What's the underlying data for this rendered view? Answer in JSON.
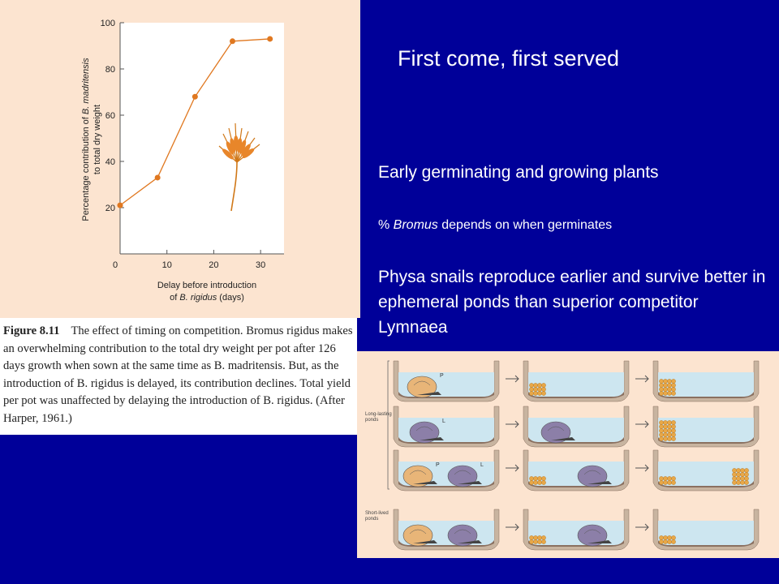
{
  "slide": {
    "title": "First come, first served",
    "bullet1": "Early germinating and growing plants",
    "bullet2_prefix": "% ",
    "bullet2_italic": "Bromus",
    "bullet2_suffix": " depends on when germinates",
    "bullet3": "Physa snails reproduce earlier and survive better in ephemeral ponds than superior competitor Lymnaea"
  },
  "chart_data": {
    "type": "line",
    "ylabel_line1_prefix": "Percentage contribution of ",
    "ylabel_line1_italic": "B. madritensis",
    "ylabel_line2": "to total dry weight",
    "xlabel_line1": "Delay before introduction",
    "xlabel_line2_prefix": "of ",
    "xlabel_line2_italic": "B. rigidus",
    "xlabel_line2_suffix": " (days)",
    "xlim": [
      0,
      35
    ],
    "ylim": [
      0,
      100
    ],
    "xticks": [
      0,
      10,
      20,
      30
    ],
    "yticks": [
      20,
      40,
      60,
      80,
      100
    ],
    "x": [
      0,
      8,
      16,
      24,
      32
    ],
    "y": [
      21,
      33,
      68,
      92,
      93
    ],
    "grid": false,
    "line_color": "#E07820"
  },
  "caption": {
    "label": "Figure 8.11",
    "text": "The effect of timing on competition. Bromus rigidus makes an overwhelming contribution to the total dry weight per pot after 126 days growth when sown at the same time as B. madritensis. But, as the introduction of B. rigidus is delayed, its contribution declines. Total yield per pot was unaffected by delaying the introduction of B. rigidus. (After Harper, 1961.)"
  },
  "snail_figure": {
    "label_long": "Long-lasting ponds",
    "label_short": "Short-lived ponds",
    "row1_letters": [
      "P"
    ],
    "row2_letters": [
      "L"
    ],
    "row3_letters": [
      "P",
      "L"
    ],
    "physa_color": "#E8B578",
    "lymnaea_color": "#8C7FA8",
    "water_color": "#CDE6F0"
  }
}
